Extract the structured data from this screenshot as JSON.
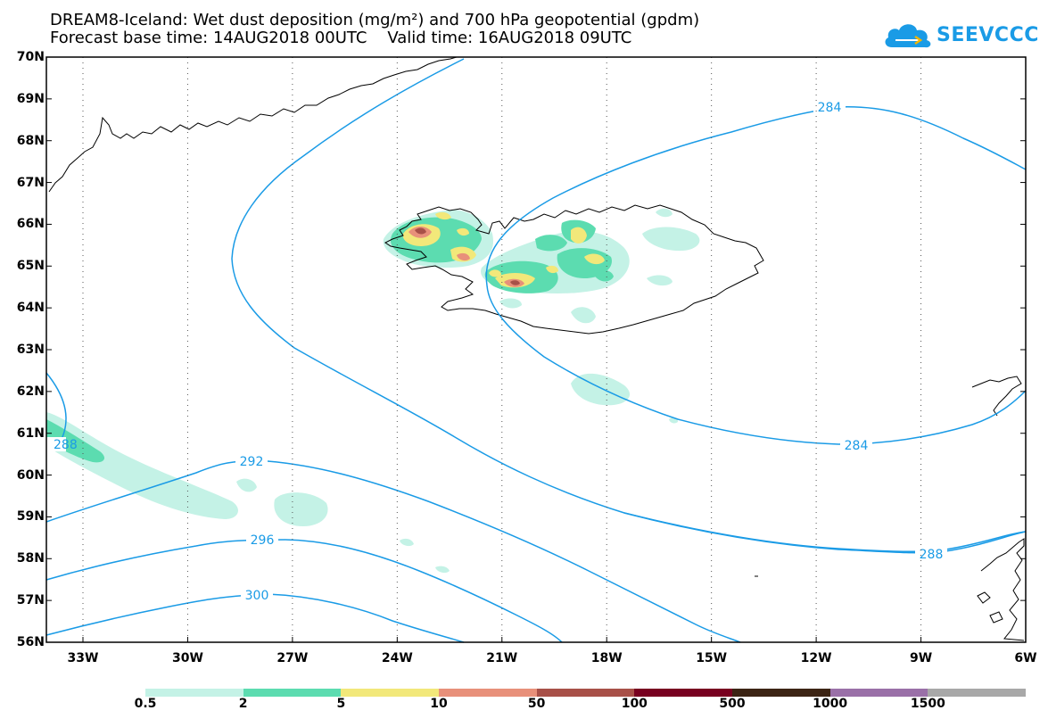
{
  "header": {
    "title_line1": "DREAM8-Iceland: Wet dust deposition (mg/m²) and 700 hPa geopotential (gpdm)",
    "title_line2": "Forecast base time: 14AUG2018 00UTC    Valid time: 16AUG2018 09UTC"
  },
  "logo": {
    "text": "SEEVCCC",
    "icon": "cloud-icon",
    "color": "#1a9be6"
  },
  "map": {
    "lat_labels": [
      "70N",
      "69N",
      "68N",
      "67N",
      "66N",
      "65N",
      "64N",
      "63N",
      "62N",
      "61N",
      "60N",
      "59N",
      "58N",
      "57N",
      "56N"
    ],
    "lon_labels": [
      "33W",
      "30W",
      "27W",
      "24W",
      "21W",
      "18W",
      "15W",
      "12W",
      "9W",
      "6W"
    ],
    "contour_color": "#1a9be6",
    "contour_labels": [
      "284",
      "284",
      "288",
      "288",
      "292",
      "296",
      "300"
    ]
  },
  "colorbar": {
    "labels": [
      "0.5",
      "2",
      "5",
      "10",
      "50",
      "100",
      "500",
      "1000",
      "1500"
    ],
    "colors": [
      "#c4f2e6",
      "#5cdcb0",
      "#f2e87a",
      "#e8907a",
      "#a85048",
      "#780020",
      "#3c2414",
      "#9a70a8",
      "#a8a8a8"
    ]
  }
}
